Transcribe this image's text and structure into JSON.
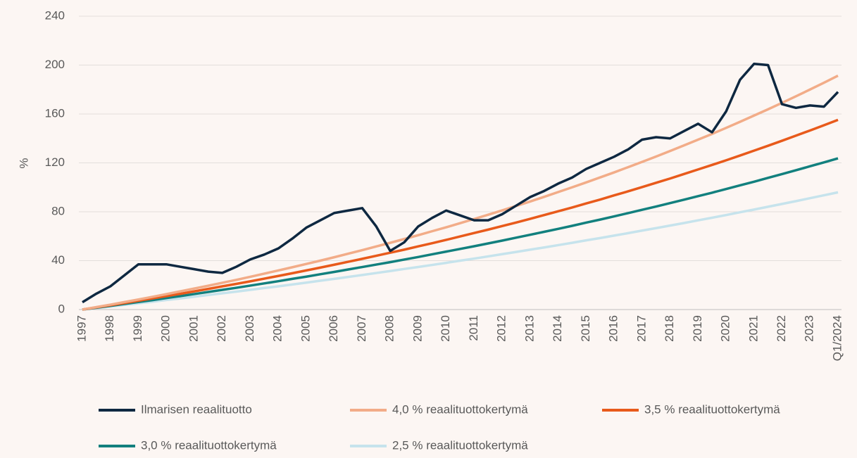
{
  "chart_data": {
    "type": "line",
    "y_label": "%",
    "categories": [
      "1997",
      null,
      "1998",
      null,
      "1999",
      null,
      "2000",
      null,
      "2001",
      null,
      "2002",
      null,
      "2003",
      null,
      "2004",
      null,
      "2005",
      null,
      "2006",
      null,
      "2007",
      null,
      "2008",
      null,
      "2009",
      null,
      "2010",
      null,
      "2011",
      null,
      "2012",
      null,
      "2013",
      null,
      "2014",
      null,
      "2015",
      null,
      "2016",
      null,
      "2017",
      null,
      "2018",
      null,
      "2019",
      null,
      "2020",
      null,
      "2021",
      null,
      "2022",
      null,
      "2023",
      null,
      "Q1/2024"
    ],
    "ylim": [
      0,
      240
    ],
    "yticks": [
      0,
      40,
      80,
      120,
      160,
      200,
      240
    ],
    "grid": true,
    "series": [
      {
        "name": "Ilmarisen reaalituotto",
        "color": "#0e2841",
        "values": [
          6,
          13,
          19,
          28,
          37,
          37,
          37,
          35,
          33,
          31,
          30,
          35,
          41,
          45,
          50,
          58,
          67,
          73,
          79,
          81,
          83,
          68,
          48,
          55,
          68,
          75,
          81,
          77,
          73,
          73,
          78,
          85,
          92,
          97,
          103,
          108,
          115,
          120,
          125,
          131,
          139,
          141,
          140,
          146,
          152,
          145,
          162,
          188,
          201,
          200,
          168,
          165,
          167,
          166,
          178
        ]
      },
      {
        "name": "4,0 % reaalituottokertymä",
        "color": "#f2ac88",
        "values": [
          0,
          2.0,
          4.0,
          6.1,
          8.2,
          10.4,
          12.6,
          14.9,
          17.2,
          19.5,
          21.9,
          24.3,
          26.8,
          29.4,
          32.0,
          34.6,
          37.3,
          40.0,
          42.8,
          45.7,
          48.6,
          51.6,
          54.6,
          57.7,
          60.8,
          64.1,
          67.3,
          70.7,
          74.1,
          77.6,
          81.1,
          84.8,
          88.4,
          92.2,
          96.1,
          100.0,
          104.0,
          108.1,
          112.2,
          116.5,
          120.8,
          125.2,
          129.7,
          134.3,
          139.0,
          143.7,
          148.6,
          153.6,
          158.7,
          163.8,
          169.1,
          174.5,
          180.0,
          185.6,
          191.3
        ]
      },
      {
        "name": "3,5 % reaalituottokertymä",
        "color": "#e85a1b",
        "values": [
          0,
          1.8,
          3.5,
          5.3,
          7.2,
          9.1,
          11.0,
          12.9,
          14.9,
          16.9,
          19.0,
          21.0,
          23.1,
          25.3,
          27.5,
          29.7,
          32.0,
          34.3,
          36.7,
          39.1,
          41.5,
          44.0,
          46.5,
          49.0,
          51.7,
          54.3,
          57.0,
          59.8,
          62.6,
          65.4,
          68.3,
          71.2,
          74.2,
          77.3,
          80.4,
          83.5,
          86.8,
          90.0,
          93.4,
          96.7,
          100.2,
          103.7,
          107.2,
          110.9,
          114.6,
          118.3,
          122.1,
          126.0,
          130.0,
          134.0,
          138.1,
          142.3,
          146.5,
          150.8,
          155.2
        ]
      },
      {
        "name": "3,0 % reaalituottokertymä",
        "color": "#12807e",
        "values": [
          0,
          1.5,
          3.0,
          4.6,
          6.2,
          7.7,
          9.4,
          11.0,
          12.7,
          14.4,
          16.1,
          17.8,
          19.6,
          21.4,
          23.2,
          25.1,
          26.9,
          28.9,
          30.8,
          32.8,
          34.8,
          36.8,
          38.8,
          40.9,
          43.0,
          45.2,
          47.4,
          49.6,
          51.8,
          54.1,
          56.4,
          58.8,
          61.2,
          63.6,
          66.0,
          68.5,
          71.1,
          73.6,
          76.2,
          78.9,
          81.6,
          84.3,
          87.1,
          89.9,
          92.8,
          95.6,
          98.6,
          101.6,
          104.6,
          107.7,
          110.8,
          114.0,
          117.2,
          120.4,
          123.7
        ]
      },
      {
        "name": "2,5 % reaalituottokertymä",
        "color": "#c6e3ec",
        "values": [
          0,
          1.2,
          2.5,
          3.8,
          5.1,
          6.4,
          7.8,
          9.1,
          10.5,
          11.9,
          13.3,
          14.7,
          16.1,
          17.6,
          19.0,
          20.5,
          22.0,
          23.6,
          25.1,
          26.7,
          28.3,
          29.9,
          31.5,
          33.2,
          34.8,
          36.5,
          38.2,
          40.0,
          41.7,
          43.5,
          45.3,
          47.1,
          49.0,
          50.8,
          52.7,
          54.6,
          56.6,
          58.5,
          60.5,
          62.5,
          64.6,
          66.6,
          68.7,
          70.8,
          73.0,
          75.1,
          77.3,
          79.6,
          81.8,
          84.1,
          86.4,
          88.7,
          91.1,
          93.5,
          95.9
        ]
      }
    ]
  }
}
